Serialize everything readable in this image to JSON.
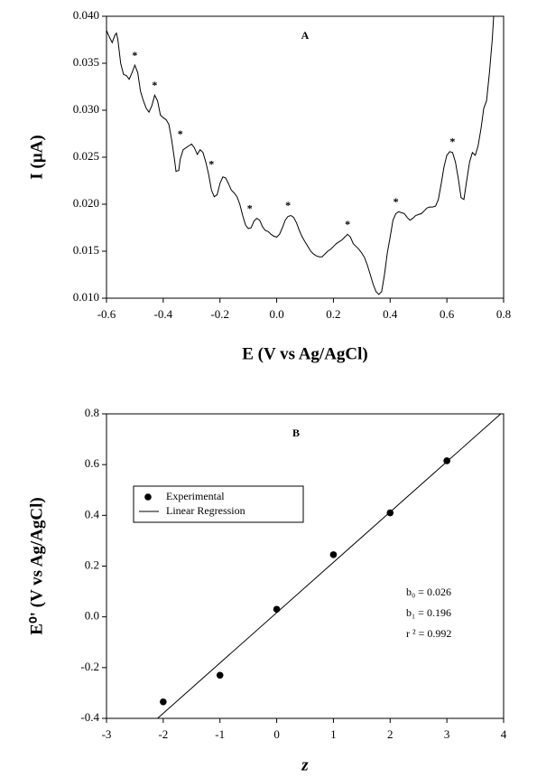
{
  "chart_data": [
    {
      "type": "line",
      "title": "A",
      "xlabel": "E (V vs Ag/AgCl)",
      "ylabel": "I (µA)",
      "color": "#000000",
      "x": [
        -0.6,
        -0.59,
        -0.58,
        -0.57,
        -0.565,
        -0.56,
        -0.55,
        -0.54,
        -0.53,
        -0.52,
        -0.51,
        -0.5,
        -0.49,
        -0.48,
        -0.47,
        -0.46,
        -0.45,
        -0.44,
        -0.43,
        -0.42,
        -0.41,
        -0.4,
        -0.39,
        -0.38,
        -0.37,
        -0.36,
        -0.355,
        -0.345,
        -0.34,
        -0.33,
        -0.32,
        -0.31,
        -0.3,
        -0.29,
        -0.28,
        -0.27,
        -0.26,
        -0.25,
        -0.24,
        -0.23,
        -0.22,
        -0.21,
        -0.2,
        -0.19,
        -0.18,
        -0.17,
        -0.16,
        -0.15,
        -0.14,
        -0.13,
        -0.12,
        -0.11,
        -0.1,
        -0.09,
        -0.08,
        -0.07,
        -0.06,
        -0.05,
        -0.04,
        -0.03,
        -0.02,
        -0.01,
        0,
        0.01,
        0.02,
        0.03,
        0.04,
        0.05,
        0.06,
        0.07,
        0.08,
        0.09,
        0.1,
        0.11,
        0.12,
        0.13,
        0.14,
        0.15,
        0.16,
        0.17,
        0.18,
        0.19,
        0.2,
        0.21,
        0.22,
        0.23,
        0.24,
        0.25,
        0.26,
        0.27,
        0.28,
        0.29,
        0.3,
        0.31,
        0.32,
        0.33,
        0.34,
        0.35,
        0.36,
        0.37,
        0.38,
        0.39,
        0.4,
        0.41,
        0.42,
        0.43,
        0.44,
        0.45,
        0.46,
        0.47,
        0.48,
        0.49,
        0.5,
        0.51,
        0.52,
        0.53,
        0.54,
        0.55,
        0.56,
        0.57,
        0.58,
        0.59,
        0.6,
        0.61,
        0.62,
        0.63,
        0.64,
        0.65,
        0.66,
        0.67,
        0.68,
        0.69,
        0.7,
        0.71,
        0.72,
        0.73,
        0.74,
        0.75,
        0.76,
        0.765
      ],
      "values": [
        0.0385,
        0.0378,
        0.0372,
        0.038,
        0.0382,
        0.0375,
        0.035,
        0.0338,
        0.0337,
        0.0333,
        0.034,
        0.0348,
        0.034,
        0.032,
        0.031,
        0.0302,
        0.0298,
        0.0305,
        0.0316,
        0.031,
        0.0295,
        0.0292,
        0.029,
        0.0285,
        0.0268,
        0.0247,
        0.0235,
        0.0236,
        0.0248,
        0.0258,
        0.026,
        0.0262,
        0.0264,
        0.026,
        0.0253,
        0.0258,
        0.0255,
        0.0245,
        0.0232,
        0.0215,
        0.0208,
        0.021,
        0.0222,
        0.0229,
        0.0228,
        0.0222,
        0.0215,
        0.0212,
        0.0208,
        0.02,
        0.0188,
        0.0178,
        0.0174,
        0.0175,
        0.0182,
        0.0185,
        0.0183,
        0.0176,
        0.0172,
        0.0171,
        0.0168,
        0.0166,
        0.0165,
        0.0168,
        0.0175,
        0.0183,
        0.0187,
        0.0188,
        0.0186,
        0.018,
        0.0172,
        0.0165,
        0.016,
        0.0155,
        0.015,
        0.0147,
        0.0145,
        0.0144,
        0.0144,
        0.0147,
        0.015,
        0.0152,
        0.0155,
        0.0158,
        0.016,
        0.0162,
        0.0165,
        0.0168,
        0.0165,
        0.0158,
        0.0155,
        0.0152,
        0.0148,
        0.0143,
        0.0135,
        0.0125,
        0.0115,
        0.0107,
        0.0104,
        0.0107,
        0.0125,
        0.0148,
        0.0165,
        0.0183,
        0.019,
        0.0192,
        0.0191,
        0.019,
        0.0186,
        0.0183,
        0.0185,
        0.0188,
        0.0189,
        0.019,
        0.0193,
        0.0196,
        0.0197,
        0.0197,
        0.0198,
        0.0205,
        0.0222,
        0.024,
        0.0252,
        0.0256,
        0.0255,
        0.0245,
        0.0228,
        0.0207,
        0.0205,
        0.0225,
        0.0245,
        0.0255,
        0.0252,
        0.0262,
        0.028,
        0.0302,
        0.031,
        0.034,
        0.0375,
        0.04
      ],
      "peak_label": "*",
      "peaks": {
        "x": [
          -0.5,
          -0.43,
          -0.34,
          -0.23,
          -0.095,
          0.04,
          0.25,
          0.42,
          0.62
        ],
        "y": [
          0.0348,
          0.0316,
          0.0264,
          0.0232,
          0.0185,
          0.0188,
          0.0168,
          0.0192,
          0.0256
        ]
      },
      "xlim": [
        -0.6,
        0.8
      ],
      "xticks": [
        -0.6,
        -0.4,
        -0.2,
        {
          "value": 0,
          "label": "0.0"
        },
        0.2,
        0.4,
        0.6,
        0.8
      ],
      "ylim": [
        0.01,
        0.04
      ],
      "yticks": [
        {
          "value": 0.01,
          "label": "0.010"
        },
        0.015,
        {
          "value": 0.02,
          "label": "0.020"
        },
        0.025,
        {
          "value": 0.03,
          "label": "0.030"
        },
        0.035,
        {
          "value": 0.04,
          "label": "0.040"
        }
      ]
    },
    {
      "type": "scatter",
      "title": "B",
      "xlabel": "z",
      "ylabel": "E⁰' (V vs Ag/AgCl)",
      "series": [
        {
          "name": "Experimental",
          "color": "#000000",
          "x": [
            -2,
            -1,
            0,
            1,
            2,
            3
          ],
          "values": [
            -0.335,
            -0.23,
            0.03,
            0.245,
            0.41,
            0.615
          ]
        }
      ],
      "regression": {
        "name": "Linear Regression",
        "color": "#000000",
        "x": [
          -2.1,
          4
        ],
        "values": [
          -0.4,
          0.81
        ]
      },
      "stats": [
        "b₀ = 0.026",
        "b₁ = 0.196",
        "r ² = 0.992"
      ],
      "legend": "upper left",
      "xlim": [
        -3,
        4
      ],
      "xticks": [
        -3,
        -2,
        -1,
        0,
        1,
        2,
        3,
        4
      ],
      "ylim": [
        -0.4,
        0.8
      ],
      "yticks": [
        -0.4,
        -0.2,
        {
          "value": 0,
          "label": "0.0"
        },
        0.2,
        0.4,
        0.6,
        0.8
      ]
    }
  ]
}
